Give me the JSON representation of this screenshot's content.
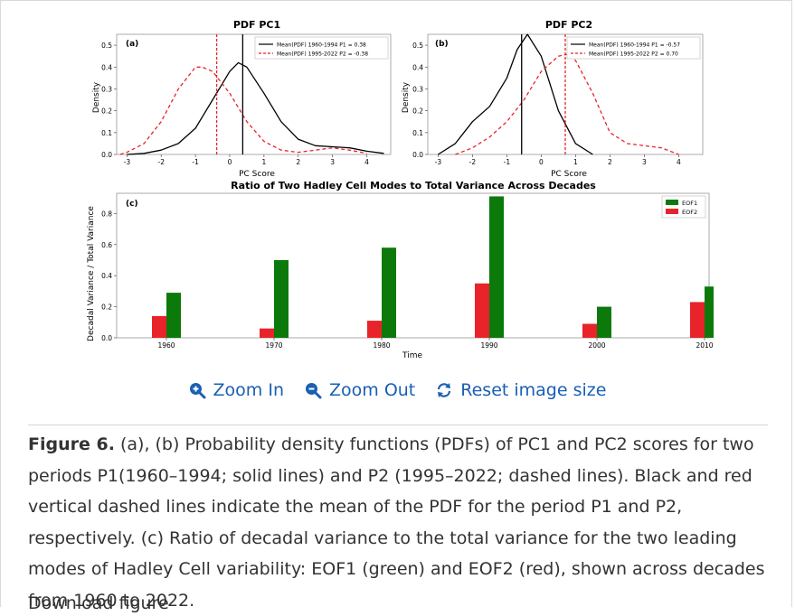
{
  "figure": {
    "pc1": {
      "title": "PDF PC1",
      "panel": "(a)",
      "xlabel": "PC Score",
      "ylabel": "Density",
      "legend": [
        "Mean(PDF) 1960-1994 P1 = 0.38",
        "Mean(PDF) 1995-2022 P2 = -0.38"
      ]
    },
    "pc2": {
      "title": "PDF PC2",
      "panel": "(b)",
      "xlabel": "PC Score",
      "ylabel": "Density",
      "legend": [
        "Mean(PDF) 1960-1994 P1 = -0.57",
        "Mean(PDF) 1995-2022 P2 = 0.70"
      ]
    },
    "density_ticks": [
      "0.0",
      "0.1",
      "0.2",
      "0.3",
      "0.4",
      "0.5"
    ],
    "score_ticks": [
      "-3",
      "-2",
      "-1",
      "0",
      "1",
      "2",
      "3",
      "4"
    ],
    "colors": {
      "p1": "#000000",
      "p2": "#e8232a",
      "eof1": "#0b7a0b",
      "eof2": "#e8232a"
    }
  },
  "chart_data": [
    {
      "type": "line",
      "title": "PDF PC1",
      "xlabel": "PC Score",
      "ylabel": "Density",
      "xlim": [
        -3.3,
        4.7
      ],
      "ylim": [
        0,
        0.55
      ],
      "series": [
        {
          "name": "1960-1994 P1",
          "style": "solid",
          "x": [
            -3.0,
            -2.5,
            -2.0,
            -1.5,
            -1.0,
            -0.5,
            0.0,
            0.25,
            0.5,
            1.0,
            1.5,
            2.0,
            2.5,
            3.0,
            3.5,
            4.0,
            4.5
          ],
          "y": [
            0.0,
            0.005,
            0.02,
            0.05,
            0.12,
            0.25,
            0.38,
            0.42,
            0.4,
            0.28,
            0.15,
            0.07,
            0.04,
            0.035,
            0.03,
            0.015,
            0.005
          ]
        },
        {
          "name": "1995-2022 P2",
          "style": "dashed",
          "x": [
            -3.2,
            -3.0,
            -2.5,
            -2.0,
            -1.5,
            -1.0,
            -0.8,
            -0.5,
            0.0,
            0.5,
            1.0,
            1.5,
            2.0,
            2.5,
            3.0,
            3.5,
            4.0
          ],
          "y": [
            0.0,
            0.01,
            0.05,
            0.15,
            0.3,
            0.4,
            0.4,
            0.38,
            0.28,
            0.15,
            0.06,
            0.02,
            0.01,
            0.02,
            0.03,
            0.02,
            0.005
          ]
        }
      ],
      "vlines": [
        {
          "x": 0.38,
          "color": "black"
        },
        {
          "x": -0.38,
          "color": "red"
        }
      ]
    },
    {
      "type": "line",
      "title": "PDF PC2",
      "xlabel": "PC Score",
      "ylabel": "Density",
      "xlim": [
        -3.3,
        4.7
      ],
      "ylim": [
        0,
        0.55
      ],
      "series": [
        {
          "name": "1960-1994 P1",
          "style": "solid",
          "x": [
            -3.0,
            -2.5,
            -2.0,
            -1.5,
            -1.0,
            -0.7,
            -0.4,
            0.0,
            0.5,
            1.0,
            1.5
          ],
          "y": [
            0.0,
            0.05,
            0.15,
            0.22,
            0.35,
            0.48,
            0.55,
            0.45,
            0.2,
            0.05,
            0.0
          ]
        },
        {
          "name": "1995-2022 P2",
          "style": "dashed",
          "x": [
            -2.5,
            -2.0,
            -1.5,
            -1.0,
            -0.5,
            0.0,
            0.5,
            0.8,
            1.0,
            1.5,
            2.0,
            2.5,
            3.0,
            3.5,
            4.0
          ],
          "y": [
            0.0,
            0.03,
            0.08,
            0.15,
            0.25,
            0.38,
            0.45,
            0.46,
            0.43,
            0.28,
            0.1,
            0.05,
            0.04,
            0.03,
            0.0
          ]
        }
      ],
      "vlines": [
        {
          "x": -0.57,
          "color": "black"
        },
        {
          "x": 0.7,
          "color": "red"
        }
      ]
    },
    {
      "type": "bar",
      "panel": "(c)",
      "title": "Ratio of Two Hadley Cell Modes to Total Variance Across Decades",
      "xlabel": "Time",
      "ylabel": "Decadal Variance / Total Variance",
      "categories": [
        "1960",
        "1970",
        "1980",
        "1990",
        "2000",
        "2010"
      ],
      "ylim": [
        0,
        0.93
      ],
      "yticks": [
        "0.0",
        "0.2",
        "0.4",
        "0.6",
        "0.8"
      ],
      "series": [
        {
          "name": "EOF1",
          "color": "green",
          "values": [
            0.29,
            0.5,
            0.58,
            0.91,
            0.2,
            0.33
          ]
        },
        {
          "name": "EOF2",
          "color": "red",
          "values": [
            0.14,
            0.06,
            0.11,
            0.35,
            0.09,
            0.23
          ]
        }
      ]
    }
  ],
  "zoom": {
    "zoom_in": "Zoom In",
    "zoom_out": "Zoom Out",
    "reset": "Reset image size"
  },
  "caption": {
    "label": "Figure 6.",
    "text": " (a), (b) Probability density functions (PDFs) of PC1 and PC2 scores for two periods P1(1960–1994; solid lines) and P2 (1995–2022; dashed lines). Black and red vertical dashed lines indicate the mean of the PDF for the period P1 and P2, respectively. (c) Ratio of decadal variance to the total variance for the two leading modes of Hadley Cell variability: EOF1 (green) and EOF2 (red), shown across decades from 1960 to 2022."
  },
  "next_heading": "Download figure"
}
